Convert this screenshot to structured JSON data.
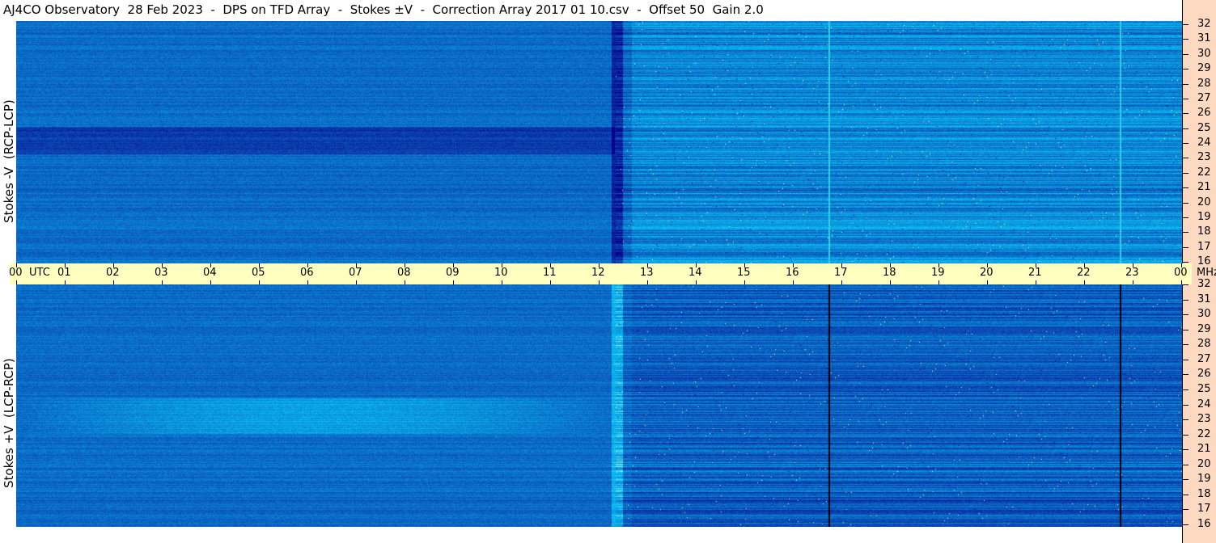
{
  "title": "AJ4CO Observatory  28 Feb 2023  -  DPS on TFD Array  -  Stokes ±V  -  Correction Array 2017 01 10.csv  -  Offset 50  Gain 2.0",
  "chart_data": {
    "type": "heatmap",
    "panels": [
      {
        "label": "Stokes -V  (RCP-LCP)"
      },
      {
        "label": "Stokes +V  (LCP-RCP)"
      }
    ],
    "x_ticks": [
      "00",
      "01",
      "02",
      "03",
      "04",
      "05",
      "06",
      "07",
      "08",
      "09",
      "10",
      "11",
      "12",
      "13",
      "14",
      "15",
      "16",
      "17",
      "18",
      "19",
      "20",
      "21",
      "22",
      "23",
      "00"
    ],
    "x_unit": "UTC",
    "y_unit": "MHz",
    "ylim": [
      16,
      32
    ],
    "y_ticks": [
      32,
      31,
      30,
      29,
      28,
      27,
      26,
      25,
      24,
      23,
      22,
      21,
      20,
      19,
      18,
      17,
      16
    ],
    "colors": {
      "background": "#1e6ee6",
      "dark": "#0a2a9a",
      "bright": "#40e0d0",
      "axis_strip": "#ffffc0",
      "right_axis": "#fdd9c1"
    }
  }
}
